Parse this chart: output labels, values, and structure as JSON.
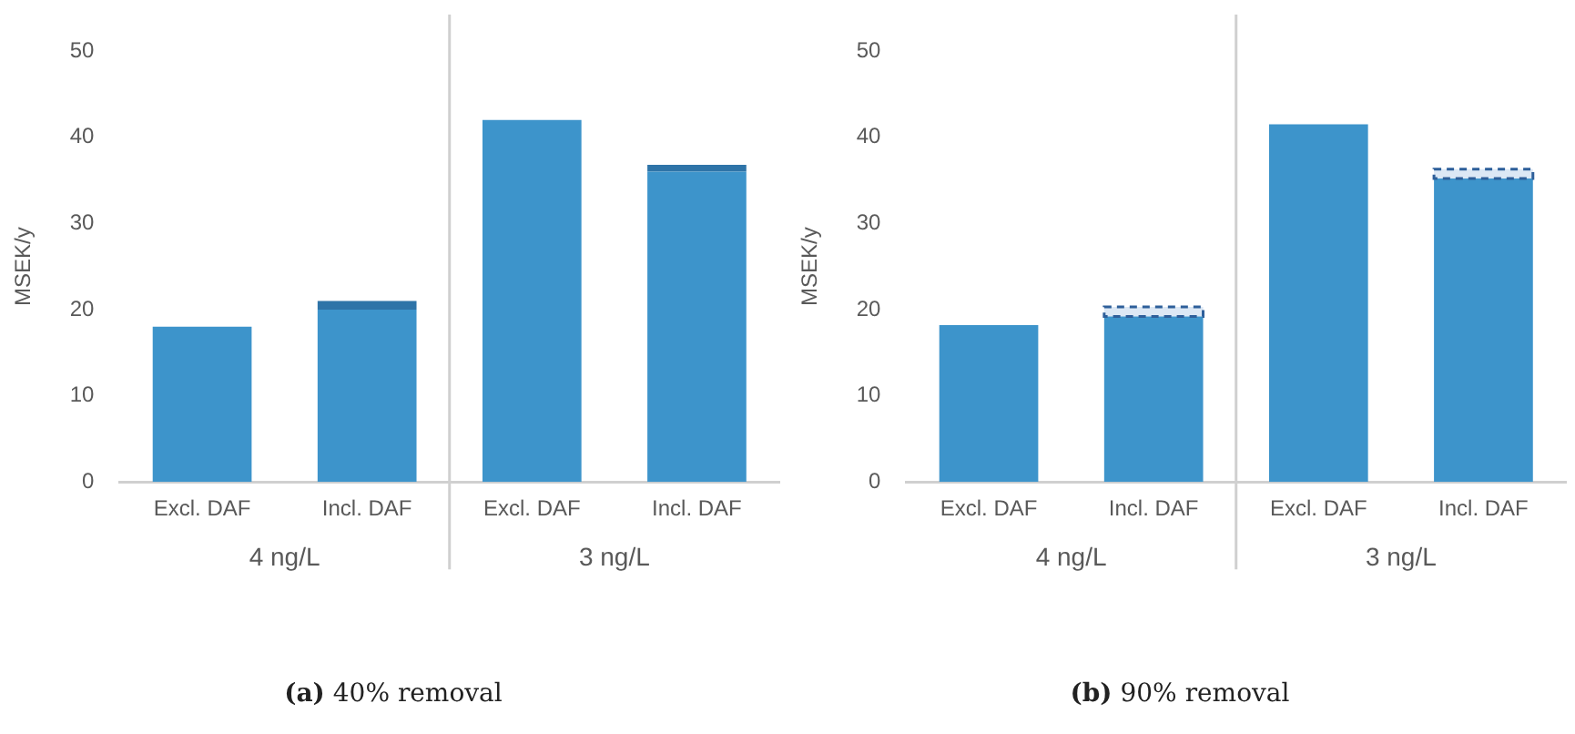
{
  "chart_data": [
    {
      "type": "bar",
      "title": "(a) 40% removal",
      "ylabel": "MSEK/y",
      "categories": [
        "Excl. DAF",
        "Incl. DAF",
        "Excl. DAF",
        "Incl. DAF"
      ],
      "stacked": true,
      "ylim": [
        0,
        50
      ],
      "yticks": [
        0,
        10,
        20,
        30,
        40,
        50
      ],
      "grid": false,
      "legend": false,
      "annotations": [
        "4 ng/L",
        "3 ng/L"
      ],
      "series": [
        {
          "color": "#3d94cb",
          "values": [
            18,
            20,
            42,
            36
          ]
        },
        {
          "color": "#2e74a8",
          "values": [
            null,
            1,
            null,
            0.8
          ]
        }
      ]
    },
    {
      "type": "bar",
      "title": "(b) 90% removal",
      "ylabel": "MSEK/y",
      "categories": [
        "Excl. DAF",
        "Incl. DAF",
        "Excl. DAF",
        "Incl. DAF"
      ],
      "stacked": true,
      "ylim": [
        0,
        50
      ],
      "yticks": [
        0,
        10,
        20,
        30,
        40,
        50
      ],
      "grid": false,
      "legend": false,
      "annotations": [
        "4 ng/L",
        "3 ng/L"
      ],
      "series": [
        {
          "color": "#3d94cb",
          "values": [
            18.2,
            19.2,
            41.5,
            35.2
          ]
        },
        {
          "color": "#dce8f5",
          "line_style": "dashed",
          "values": [
            null,
            1.1,
            null,
            1.1
          ]
        }
      ]
    }
  ]
}
